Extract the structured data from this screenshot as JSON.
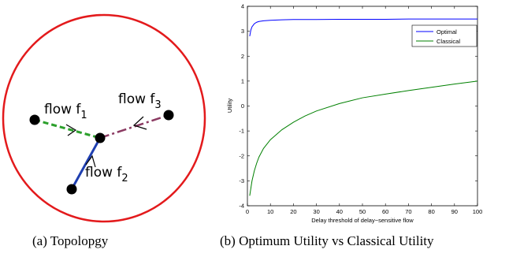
{
  "figure_a": {
    "caption": "(a) Topolopgy",
    "flows": [
      {
        "prefix": "flow f",
        "sub": "1",
        "color": "#2ca02c"
      },
      {
        "prefix": "flow f",
        "sub": "2",
        "color": "#1f3fb0"
      },
      {
        "prefix": "flow f",
        "sub": "3",
        "color": "#8b3a62"
      }
    ],
    "boundary_color": "#e31a1c",
    "node_color": "#000000"
  },
  "figure_b": {
    "caption": "(b) Optimum Utility vs Classical Utility"
  },
  "chart_data": {
    "type": "line",
    "title": "",
    "xlabel": "Delay threshold of delay−sensitive flow",
    "ylabel": "Utility",
    "xlim": [
      0,
      100
    ],
    "ylim": [
      -4,
      4
    ],
    "xticks": [
      0,
      10,
      20,
      30,
      40,
      50,
      60,
      70,
      80,
      90,
      100
    ],
    "yticks": [
      -4,
      -3,
      -2,
      -1,
      0,
      1,
      2,
      3,
      4
    ],
    "grid": false,
    "legend_position": "top-right",
    "series": [
      {
        "name": "Optimal",
        "color": "#0000ff",
        "x": [
          1,
          1.5,
          2,
          3,
          4,
          5,
          7,
          10,
          15,
          20,
          30,
          40,
          50,
          60,
          70,
          80,
          90,
          100
        ],
        "y": [
          2.8,
          3.05,
          3.18,
          3.3,
          3.36,
          3.39,
          3.42,
          3.44,
          3.46,
          3.47,
          3.47,
          3.48,
          3.48,
          3.48,
          3.49,
          3.49,
          3.49,
          3.49
        ]
      },
      {
        "name": "Classical",
        "color": "#008000",
        "x": [
          1,
          1.5,
          2,
          3,
          4,
          5,
          7,
          10,
          15,
          20,
          25,
          30,
          40,
          50,
          60,
          70,
          80,
          90,
          100
        ],
        "y": [
          -3.6,
          -3.3,
          -3.0,
          -2.6,
          -2.3,
          -2.05,
          -1.7,
          -1.35,
          -0.95,
          -0.65,
          -0.4,
          -0.2,
          0.1,
          0.33,
          0.48,
          0.62,
          0.75,
          0.88,
          1.0
        ]
      }
    ]
  }
}
